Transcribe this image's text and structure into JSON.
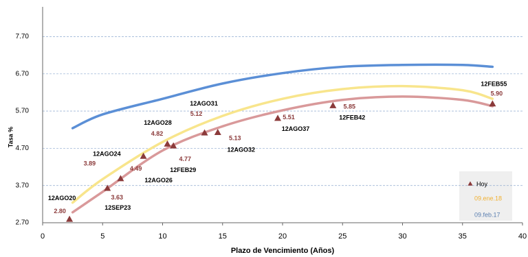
{
  "chart_data": {
    "type": "line",
    "xlabel": "Plazo de Vencimiento  (Años)",
    "ylabel": "Tasa %",
    "xlim": [
      0,
      40
    ],
    "xticks": [
      0,
      5,
      10,
      15,
      20,
      25,
      30,
      35,
      40
    ],
    "ylim": [
      2.7,
      8.5
    ],
    "yticks": [
      {
        "value": 2.7,
        "label": "2.70"
      },
      {
        "value": 3.7,
        "label": "3.70"
      },
      {
        "value": 4.7,
        "label": "4.70"
      },
      {
        "value": 5.7,
        "label": "5.70"
      },
      {
        "value": 6.7,
        "label": "6.70"
      },
      {
        "value": 7.7,
        "label": "7.70"
      }
    ],
    "grid": true,
    "legend": "lower right",
    "series": [
      {
        "name": "Hoy",
        "color": "#8b3a3a",
        "marker": "triangle",
        "x": [
          2.24,
          5.4,
          6.5,
          8.4,
          10.4,
          10.9,
          13.5,
          14.6,
          19.6,
          24.2,
          37.5
        ],
        "values": [
          2.8,
          3.63,
          3.89,
          4.49,
          4.82,
          4.77,
          5.12,
          5.13,
          5.51,
          5.85,
          5.9
        ],
        "value_labels": [
          "2.80",
          "3.63",
          "3.89",
          "4.49",
          "4.82",
          "4.77",
          "5.12",
          "5.13",
          "5.51",
          "5.85",
          "5.90"
        ],
        "labels": [
          "12AGO20",
          "12SEP23",
          "12AGO24",
          "12AGO26",
          "12AGO28",
          "12FEB29",
          "12AGO31",
          "12AGO32",
          "12AGO37",
          "12FEB42",
          "12FEB55"
        ],
        "fit_color": "#d9999a",
        "fit_x": [
          2.5,
          5,
          10,
          15,
          20,
          25,
          30,
          35,
          37.5
        ],
        "fit_values": [
          2.98,
          3.53,
          4.64,
          5.29,
          5.72,
          6.0,
          6.09,
          6.0,
          5.83
        ]
      },
      {
        "name": "09.ene.18",
        "color": "#f8e58c",
        "text_color": "#f0b030",
        "x": [
          2.5,
          5,
          10,
          15,
          20,
          25,
          30,
          35,
          37.5
        ],
        "values": [
          3.24,
          3.87,
          4.87,
          5.57,
          6.03,
          6.29,
          6.37,
          6.26,
          6.03
        ]
      },
      {
        "name": "09.feb.17",
        "color": "#5b8fd6",
        "text_color": "#5b7fb0",
        "x": [
          2.5,
          5,
          10,
          15,
          20,
          25,
          30,
          35,
          37.5
        ],
        "values": [
          5.24,
          5.61,
          6.03,
          6.44,
          6.72,
          6.89,
          6.94,
          6.94,
          6.89
        ]
      }
    ]
  }
}
